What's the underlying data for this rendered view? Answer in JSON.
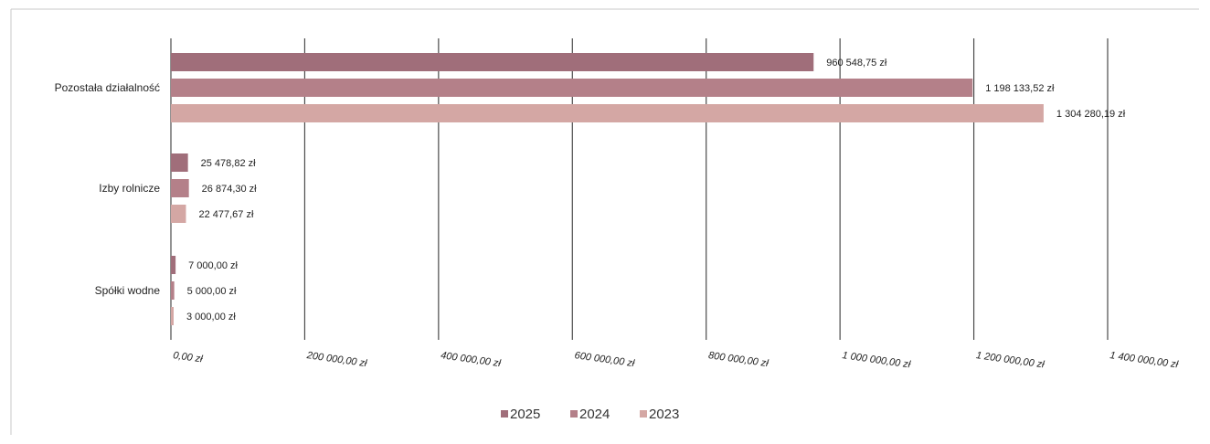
{
  "chart_data": {
    "type": "bar",
    "orientation": "horizontal",
    "categories": [
      "Pozostała działalność",
      "Izby rolnicze",
      "Spółki wodne"
    ],
    "series": [
      {
        "name": "2025",
        "color": "#a06e7a",
        "values": [
          960548.75,
          25478.82,
          7000.0
        ],
        "labels": [
          "960 548,75 zł",
          "25 478,82 zł",
          "7 000,00 zł"
        ]
      },
      {
        "name": "2024",
        "color": "#b48089",
        "values": [
          1198133.52,
          26874.3,
          5000.0
        ],
        "labels": [
          "1 198 133,52 zł",
          "26 874,30 zł",
          "5 000,00 zł"
        ]
      },
      {
        "name": "2023",
        "color": "#d4a7a4",
        "values": [
          1304280.19,
          22477.67,
          3000.0
        ],
        "labels": [
          "1 304 280,19 zł",
          "22 477,67 zł",
          "3 000,00 zł"
        ]
      }
    ],
    "xlim": [
      0,
      1400000
    ],
    "xticks": [
      0,
      200000,
      400000,
      600000,
      800000,
      1000000,
      1200000,
      1400000
    ],
    "xtick_labels": [
      "0,00 zł",
      "200 000,00 zł",
      "400 000,00 zł",
      "600 000,00 zł",
      "800 000,00 zł",
      "1 000 000,00 zł",
      "1 200 000,00 zł",
      "1 400 000,00 zł"
    ],
    "grid": true,
    "legend": {
      "position": "bottom",
      "entries": [
        "2025",
        "2024",
        "2023"
      ]
    },
    "title": "",
    "xlabel": "",
    "ylabel": ""
  }
}
